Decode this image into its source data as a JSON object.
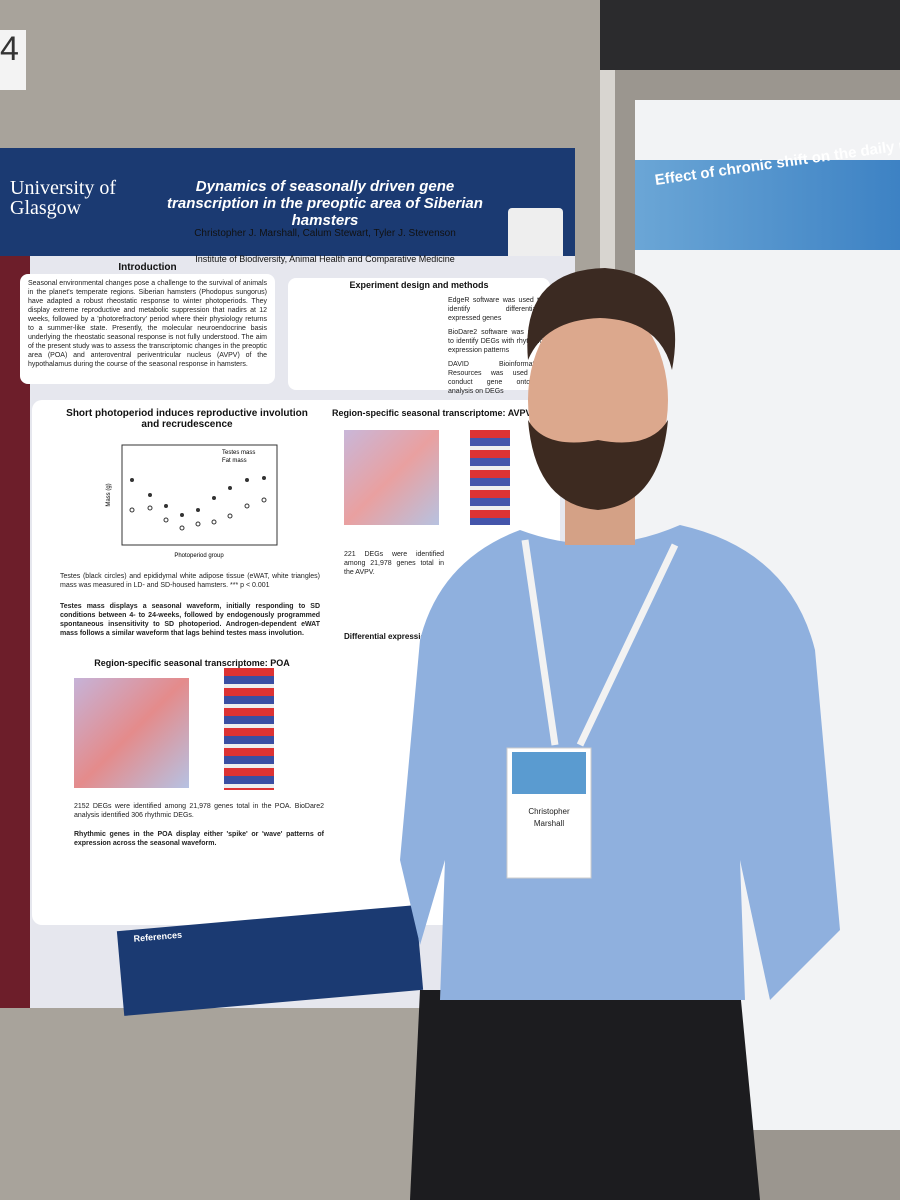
{
  "panel_number": "4",
  "left_poster": {
    "logo": "University of Glasgow",
    "title": "Dynamics of seasonally driven gene transcription in the preoptic area of Siberian hamsters",
    "authors": "Christopher J. Marshall, Calum Stewart, Tyler J. Stevenson",
    "affiliation": "Institute of Biodiversity, Animal Health and Comparative Medicine",
    "introduction": {
      "heading": "Introduction",
      "text": "Seasonal environmental changes pose a challenge to the survival of animals in the planet's temperate regions. Siberian hamsters (Phodopus sungorus) have adapted a robust rheostatic response to winter photoperiods. They display extreme reproductive and metabolic suppression that nadirs at 12 weeks, followed by a 'photorefractory' period where their physiology returns to a summer-like state. Presently, the molecular neuroendocrine basis underlying the rheostatic seasonal response is not fully understood. The aim of the present study was to assess the transcriptomic changes in the preoptic area (POA) and anteroventral periventricular nucleus (AVPV) of the hypothalamus during the course of the seasonal response in hamsters."
    },
    "methods": {
      "heading": "Experiment design and methods",
      "bullets": [
        "EdgeR software was used to identify differentially expressed genes",
        "BioDare2 software was used to identify DEGs with rhythmic expression patterns",
        "DAVID Bioinformatics Resources was used to conduct gene ontology analysis on DEGs"
      ]
    },
    "figure": {
      "heading": "Short photoperiod induces reproductive involution and recrudescence",
      "legend": [
        "Testes mass",
        "Fat mass"
      ],
      "x_label": "Photoperiod group",
      "y_label": "Mass (g)",
      "caption": "Testes (black circles) and epididymal white adipose tissue (eWAT, white triangles) mass was measured in LD- and SD-housed hamsters. *** p < 0.001",
      "note": "Testes mass displays a seasonal waveform, initially responding to SD conditions between 4- to 24-weeks, followed by endogenously programmed spontaneous insensitivity to SD photoperiod. Androgen-dependent eWAT mass follows a similar waveform that lags behind testes mass involution."
    },
    "avpv": {
      "heading": "Region-specific seasonal transcriptome: AVPV",
      "text": "221 DEGs were identified among 21,978 genes total in the AVPV."
    },
    "poa": {
      "heading": "Region-specific seasonal transcriptome: POA",
      "text": "2152 DEGs were identified among 21,978 genes total in the POA. BioDare2 analysis identified 306 rhythmic DEGs.",
      "note": "Rhythmic genes in the POA display either 'spike' or 'wave' patterns of expression across the seasonal waveform."
    },
    "differential": {
      "heading": "Differential expression phases in seasonal time"
    },
    "references": {
      "heading": "References"
    }
  },
  "badge": {
    "first_name": "Christopher",
    "last_name": "Marshall"
  },
  "right_poster": {
    "title": "Effect of chronic shift on the daily reproductive"
  }
}
